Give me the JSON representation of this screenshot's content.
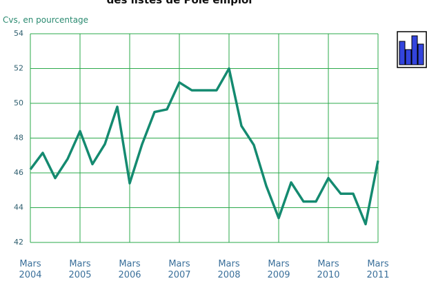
{
  "chart_data": {
    "type": "line",
    "title": "des listes de Pôle emploi",
    "y_label": "Cvs, en pourcentage",
    "categories": [
      "Mars 2004",
      null,
      null,
      null,
      "Mars 2005",
      null,
      null,
      null,
      "Mars 2006",
      null,
      null,
      null,
      "Mars 2007",
      null,
      null,
      null,
      "Mars 2008",
      null,
      null,
      null,
      "Mars 2009",
      null,
      null,
      null,
      "Mars 2010",
      null,
      null,
      null,
      "Mars 2011"
    ],
    "series": [
      {
        "name": "Cvs",
        "color": "#148a70",
        "values": [
          46.2,
          47.15,
          45.7,
          46.8,
          48.4,
          46.5,
          47.65,
          49.8,
          45.4,
          47.65,
          49.5,
          49.65,
          51.2,
          50.75,
          50.75,
          50.75,
          52.0,
          48.7,
          47.6,
          45.25,
          43.4,
          45.45,
          44.35,
          44.35,
          45.7,
          44.8,
          44.8,
          43.05,
          46.7
        ]
      }
    ],
    "ylim": [
      42,
      54
    ],
    "yticks": [
      42,
      44,
      46,
      48,
      50,
      52,
      54
    ],
    "grid": true,
    "grid_color": "#2aa84a"
  }
}
